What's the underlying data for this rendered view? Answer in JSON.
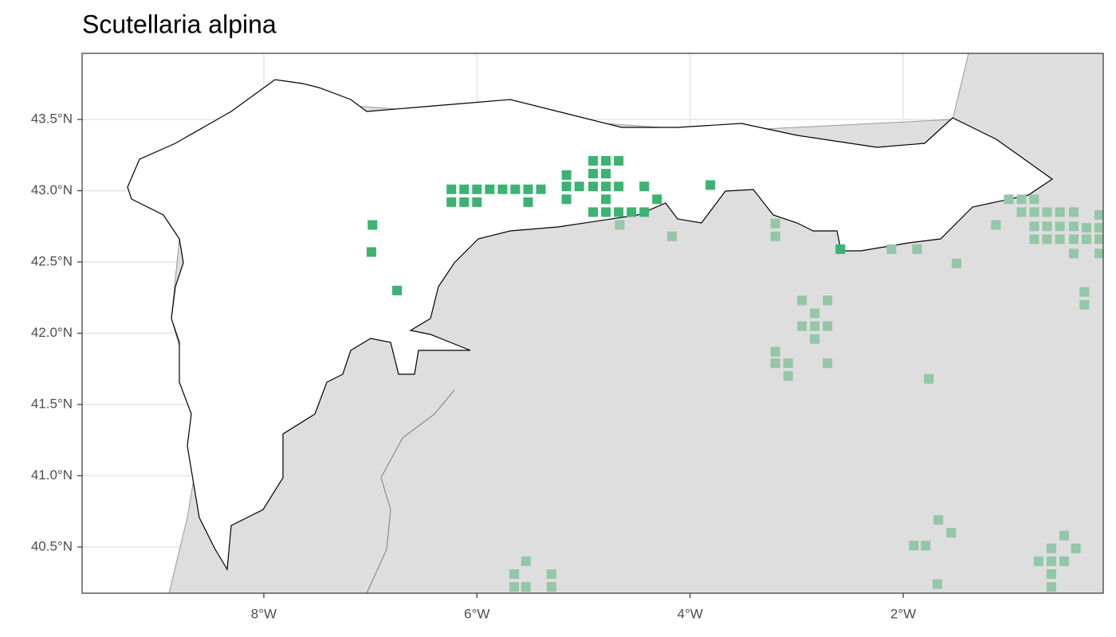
{
  "chart_data": {
    "type": "scatter",
    "title": "Scutellaria alpina",
    "xlim": [
      -9.705,
      -0.123
    ],
    "ylim": [
      40.176,
      43.964
    ],
    "xticks": [
      {
        "value": -8,
        "label": "8°W"
      },
      {
        "value": -6,
        "label": "6°W"
      },
      {
        "value": -4,
        "label": "4°W"
      },
      {
        "value": -2,
        "label": "2°W"
      }
    ],
    "yticks": [
      {
        "value": 40.5,
        "label": "40.5°N"
      },
      {
        "value": 41.0,
        "label": "41.0°N"
      },
      {
        "value": 41.5,
        "label": "41.5°N"
      },
      {
        "value": 42.0,
        "label": "42.0°N"
      },
      {
        "value": 42.5,
        "label": "42.5°N"
      },
      {
        "value": 43.0,
        "label": "43.0°N"
      },
      {
        "value": 43.5,
        "label": "43.5°N"
      }
    ],
    "grid": true,
    "series": [
      {
        "color": "#94c6a8",
        "x": [
          -4.66,
          -4.17,
          -3.2,
          -3.2,
          -2.95,
          -2.71,
          -2.83,
          -2.95,
          -2.83,
          -2.71,
          -2.83,
          -3.2,
          -3.2,
          -3.08,
          -3.08,
          -2.71,
          -2.11,
          -1.87,
          -1.5,
          -1.76,
          -1.13,
          -1.01,
          -0.89,
          -0.77,
          -0.89,
          -0.77,
          -0.65,
          -0.53,
          -0.4,
          -0.16,
          -0.77,
          -0.65,
          -0.53,
          -0.4,
          -0.28,
          -0.16,
          -0.77,
          -0.65,
          -0.53,
          -0.4,
          -0.28,
          -0.16,
          -0.4,
          -0.16,
          -0.3,
          -0.3,
          -1.67,
          -1.55,
          -1.9,
          -1.79,
          -0.38,
          -0.61,
          -0.49,
          -0.73,
          -0.61,
          -0.49,
          -0.61,
          -0.61,
          -1.68,
          -5.65,
          -5.54,
          -5.3,
          -5.65,
          -5.54,
          -5.3
        ],
        "values": [
          42.76,
          42.68,
          42.77,
          42.68,
          42.23,
          42.23,
          42.14,
          42.05,
          42.05,
          42.05,
          41.96,
          41.87,
          41.79,
          41.79,
          41.7,
          41.79,
          42.59,
          42.59,
          42.49,
          41.68,
          42.76,
          42.94,
          42.94,
          42.94,
          42.85,
          42.85,
          42.85,
          42.85,
          42.85,
          42.83,
          42.75,
          42.75,
          42.75,
          42.75,
          42.74,
          42.74,
          42.66,
          42.66,
          42.66,
          42.66,
          42.66,
          42.66,
          42.56,
          42.56,
          42.29,
          42.2,
          40.69,
          40.6,
          40.51,
          40.51,
          40.49,
          40.49,
          40.58,
          40.4,
          40.4,
          40.4,
          40.31,
          40.22,
          40.24,
          40.31,
          40.4,
          40.31,
          40.22,
          40.22,
          40.22
        ]
      },
      {
        "color": "#3cb371",
        "x": [
          -6.24,
          -6.12,
          -6.0,
          -5.88,
          -5.76,
          -5.64,
          -5.52,
          -5.4,
          -6.24,
          -6.12,
          -6.0,
          -5.52,
          -5.16,
          -5.16,
          -5.04,
          -5.16,
          -4.91,
          -4.79,
          -4.67,
          -4.91,
          -4.79,
          -4.91,
          -4.79,
          -4.67,
          -4.79,
          -4.91,
          -4.79,
          -4.67,
          -4.55,
          -4.43,
          -4.43,
          -4.31,
          -3.81,
          -6.98,
          -6.99,
          -6.75,
          -2.59
        ],
        "values": [
          43.01,
          43.01,
          43.01,
          43.01,
          43.01,
          43.01,
          43.01,
          43.01,
          42.92,
          42.92,
          42.92,
          42.92,
          43.11,
          43.03,
          43.03,
          42.94,
          43.21,
          43.21,
          43.21,
          43.12,
          43.12,
          43.03,
          43.03,
          43.03,
          42.94,
          42.85,
          42.85,
          42.85,
          42.85,
          42.85,
          43.03,
          42.94,
          43.04,
          42.76,
          42.57,
          42.3,
          42.59
        ]
      }
    ]
  }
}
